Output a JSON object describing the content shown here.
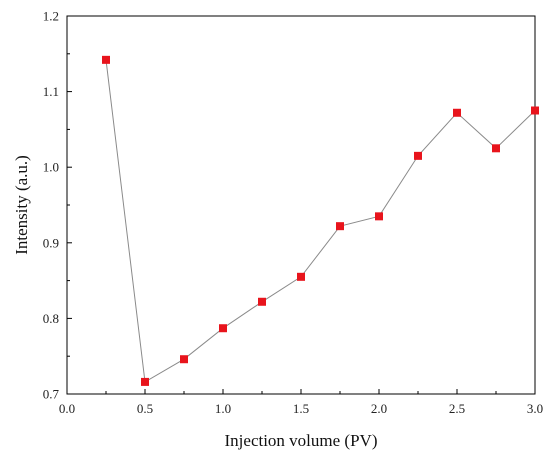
{
  "chart_data": {
    "type": "line",
    "title": "",
    "xlabel": "Injection volume (PV)",
    "ylabel": "Intensity (a.u.)",
    "xlim": [
      0.0,
      3.0
    ],
    "ylim": [
      0.7,
      1.2
    ],
    "x_ticks": [
      "0.0",
      "0.5",
      "1.0",
      "1.5",
      "2.0",
      "2.5",
      "3.0"
    ],
    "y_ticks": [
      "0.7",
      "0.8",
      "0.9",
      "1.0",
      "1.1",
      "1.2"
    ],
    "grid": false,
    "legend": "none",
    "marker": "square",
    "marker_color": "#e8141c",
    "line_color": "#8a8a8a",
    "series": [
      {
        "x": [
          0.25,
          0.5,
          0.75,
          1.0,
          1.25,
          1.5,
          1.75,
          2.0,
          2.25,
          2.5,
          2.75,
          3.0
        ],
        "y": [
          1.142,
          0.716,
          0.746,
          0.787,
          0.822,
          0.855,
          0.922,
          0.935,
          1.015,
          1.072,
          1.025,
          1.075
        ]
      }
    ]
  }
}
